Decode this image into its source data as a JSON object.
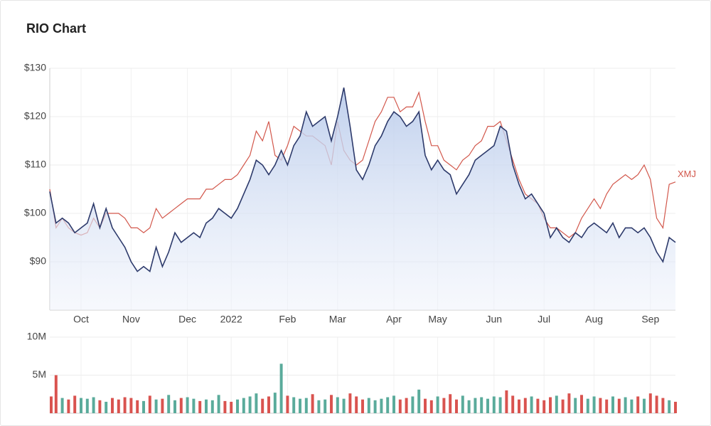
{
  "chart_data": [
    {
      "type": "line",
      "title": "RIO Chart",
      "categories": [
        null,
        null,
        null,
        null,
        null,
        "Oct",
        null,
        null,
        null,
        null,
        null,
        null,
        null,
        "Nov",
        null,
        null,
        null,
        null,
        null,
        null,
        null,
        null,
        "Dec",
        null,
        null,
        null,
        null,
        null,
        null,
        "2022",
        null,
        null,
        null,
        null,
        null,
        null,
        null,
        null,
        "Feb",
        null,
        null,
        null,
        null,
        null,
        null,
        null,
        "Mar",
        null,
        null,
        null,
        null,
        null,
        null,
        null,
        null,
        "Apr",
        null,
        null,
        null,
        null,
        null,
        null,
        "May",
        null,
        null,
        null,
        null,
        null,
        null,
        null,
        null,
        "Jun",
        null,
        null,
        null,
        null,
        null,
        null,
        null,
        "Jul",
        null,
        null,
        null,
        null,
        null,
        null,
        null,
        "Aug",
        null,
        null,
        null,
        null,
        null,
        null,
        null,
        null,
        "Sep",
        null,
        null,
        null,
        null
      ],
      "series": [
        {
          "color": "#2d3a6b",
          "fill": true,
          "values": [
            104.5,
            98,
            99,
            98,
            96,
            97,
            98,
            102,
            97,
            101,
            97,
            95,
            93,
            90,
            88,
            89,
            88,
            93,
            89,
            92,
            96,
            94,
            95,
            96,
            95,
            98,
            99,
            101,
            100,
            99,
            101,
            104,
            107,
            111,
            110,
            108,
            110,
            113,
            110,
            114,
            116,
            121,
            118,
            119,
            120,
            115,
            120,
            126,
            118,
            109,
            107,
            110,
            114,
            116,
            119,
            121,
            120,
            118,
            119,
            121,
            112,
            109,
            111,
            109,
            108,
            104,
            106,
            108,
            111,
            112,
            113,
            114,
            118,
            117,
            110,
            106,
            103,
            104,
            102,
            100,
            95,
            97,
            95,
            94,
            96,
            95,
            97,
            98,
            97,
            96,
            98,
            95,
            97,
            97,
            96,
            97,
            95,
            92,
            90,
            95,
            94
          ]
        },
        {
          "name": "XMJ",
          "color": "#d2574b",
          "fill": false,
          "values": [
            105,
            97,
            99,
            97,
            96,
            95.5,
            96,
            99,
            97,
            100,
            100,
            100,
            99,
            97,
            97,
            96,
            97,
            101,
            99,
            100,
            101,
            102,
            103,
            103,
            103,
            105,
            105,
            106,
            107,
            107,
            108,
            110,
            112,
            117,
            115,
            119,
            112,
            111,
            114,
            118,
            117,
            116,
            116,
            115,
            114,
            110,
            119,
            113,
            111,
            110,
            111,
            115,
            119,
            121,
            124,
            124,
            121,
            122,
            122,
            125,
            119,
            114,
            114,
            111,
            110,
            109,
            111,
            112,
            114,
            115,
            118,
            118,
            119,
            115,
            111,
            107,
            104,
            103,
            102,
            99,
            97,
            97,
            96,
            95,
            96,
            99,
            101,
            103,
            101,
            104,
            106,
            107,
            108,
            107,
            108,
            110,
            107,
            99,
            97,
            106,
            106.5
          ]
        }
      ],
      "ylim": [
        80,
        130
      ],
      "yticks": [
        {
          "value": 90,
          "label": "$90"
        },
        {
          "value": 100,
          "label": "$100"
        },
        {
          "value": 110,
          "label": "$110"
        },
        {
          "value": 120,
          "label": "$120"
        },
        {
          "value": 130,
          "label": "$130"
        }
      ],
      "grid": true
    },
    {
      "type": "bar",
      "values": [
        2200000,
        5000000,
        2000000,
        1800000,
        2300000,
        2000000,
        1900000,
        2100000,
        1700000,
        1500000,
        2000000,
        1800000,
        2100000,
        2000000,
        1700000,
        1600000,
        2300000,
        1800000,
        1900000,
        2400000,
        1700000,
        2000000,
        2100000,
        1900000,
        1600000,
        1800000,
        1700000,
        2400000,
        1600000,
        1500000,
        1800000,
        2000000,
        2200000,
        2600000,
        1900000,
        2200000,
        2700000,
        6500000,
        2300000,
        2100000,
        1900000,
        2000000,
        2500000,
        1700000,
        1800000,
        2400000,
        2100000,
        1900000,
        2600000,
        2200000,
        1800000,
        2000000,
        1700000,
        1900000,
        2100000,
        2300000,
        1800000,
        2000000,
        2200000,
        3100000,
        1900000,
        1700000,
        2200000,
        2000000,
        2500000,
        1800000,
        2300000,
        1700000,
        2000000,
        2100000,
        1900000,
        2200000,
        2100000,
        3000000,
        2300000,
        1800000,
        2000000,
        2200000,
        1900000,
        1700000,
        2100000,
        2300000,
        1800000,
        2600000,
        2000000,
        2400000,
        1900000,
        2200000,
        2000000,
        1800000,
        2200000,
        1900000,
        2100000,
        1800000,
        2200000,
        1900000,
        2600000,
        2300000,
        2000000,
        1700000,
        1500000
      ],
      "up_color": "#5aab9b",
      "down_color": "#d9534f",
      "ylim": [
        0,
        10000000
      ],
      "yticks": [
        {
          "value": 5000000,
          "label": "5M"
        },
        {
          "value": 10000000,
          "label": "10M"
        }
      ],
      "grid": true
    }
  ]
}
